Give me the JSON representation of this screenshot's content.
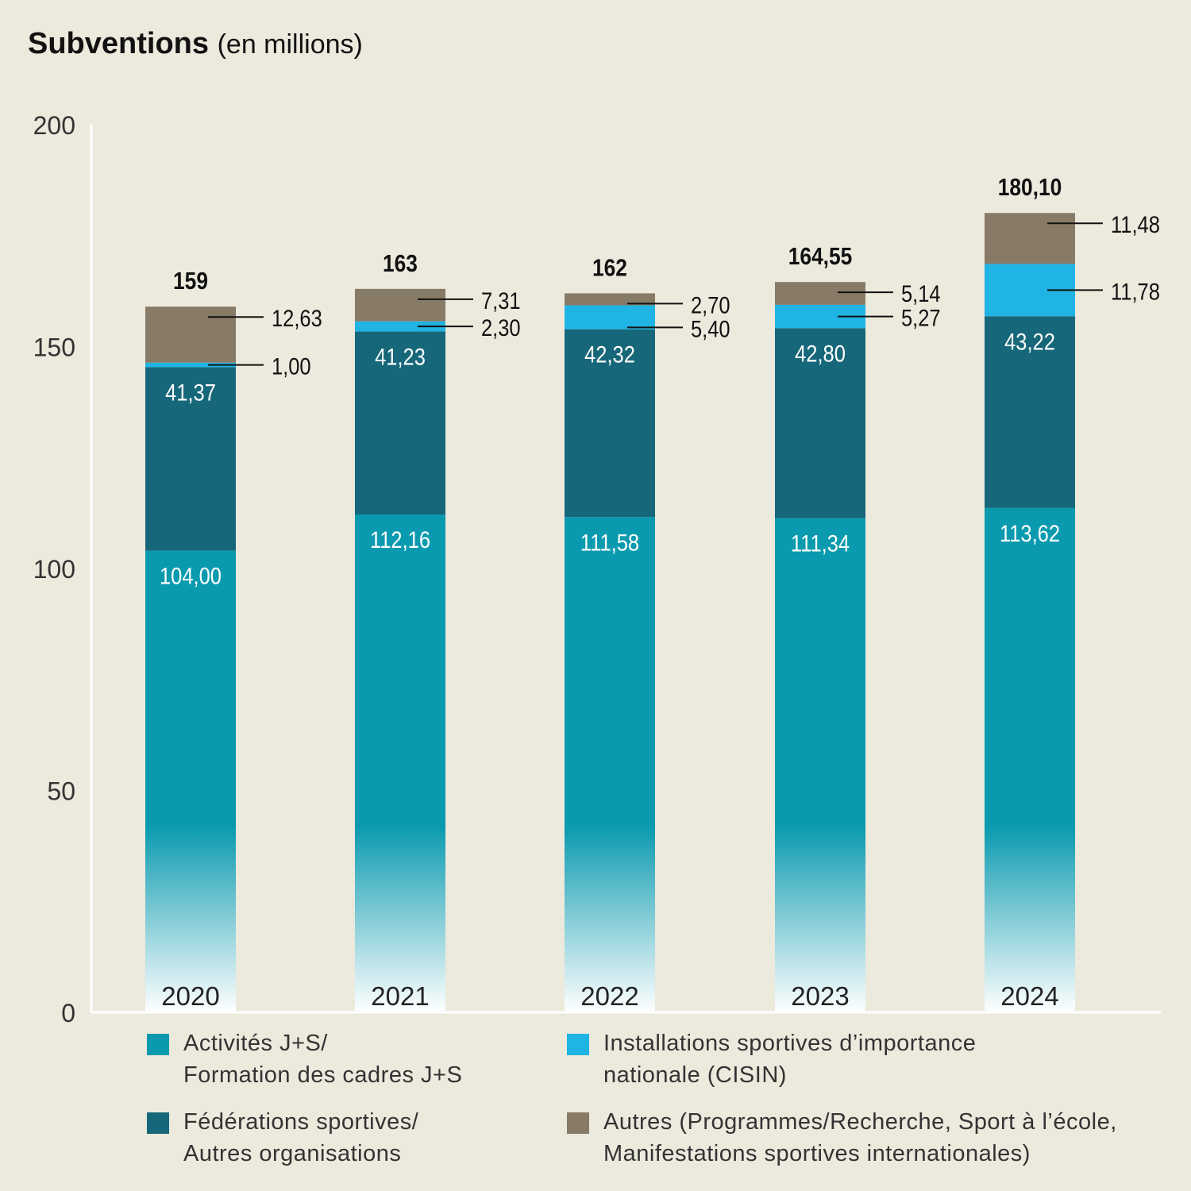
{
  "title": {
    "main": "Subventions",
    "sub": "(en millions)"
  },
  "chart_data": {
    "type": "bar",
    "stacked": true,
    "title": "Subventions (en millions)",
    "categories": [
      "2020",
      "2021",
      "2022",
      "2023",
      "2024"
    ],
    "ylim": [
      0,
      200
    ],
    "yticks": [
      "0",
      "50",
      "100",
      "150",
      "200"
    ],
    "ytick_values": [
      0,
      50,
      100,
      150,
      200
    ],
    "grid": false,
    "legend_position": "bottom",
    "series": [
      {
        "name": "Activités J+S/\nFormation des cadres J+S",
        "color": "#0A9AAF",
        "values": [
          104.0,
          112.16,
          111.58,
          111.34,
          113.62
        ],
        "labels": [
          "104,00",
          "112,16",
          "111,58",
          "111,34",
          "113,62"
        ]
      },
      {
        "name": "Fédérations sportives/\nAutres organisations",
        "color": "#16677A",
        "values": [
          41.37,
          41.23,
          42.32,
          42.8,
          43.22
        ],
        "labels": [
          "41,37",
          "41,23",
          "42,32",
          "42,80",
          "43,22"
        ]
      },
      {
        "name": "Installations sportives d’importance\nnationale (CISIN)",
        "color": "#1FB4E3",
        "values": [
          1.0,
          2.3,
          5.4,
          5.27,
          11.78
        ],
        "labels": [
          "1,00",
          "2,30",
          "5,40",
          "5,27",
          "11,78"
        ]
      },
      {
        "name": "Autres (Programmes/Recherche, Sport à l’école,\nManifestations sportives internationales)",
        "color": "#877B67",
        "values": [
          12.63,
          7.31,
          2.7,
          5.14,
          11.48
        ],
        "labels": [
          "12,63",
          "7,31",
          "2,70",
          "5,14",
          "11,48"
        ]
      }
    ],
    "totals": [
      159,
      163,
      162,
      164.55,
      180.1
    ],
    "total_labels": [
      "159",
      "163",
      "162",
      "164,55",
      "180,10"
    ]
  }
}
